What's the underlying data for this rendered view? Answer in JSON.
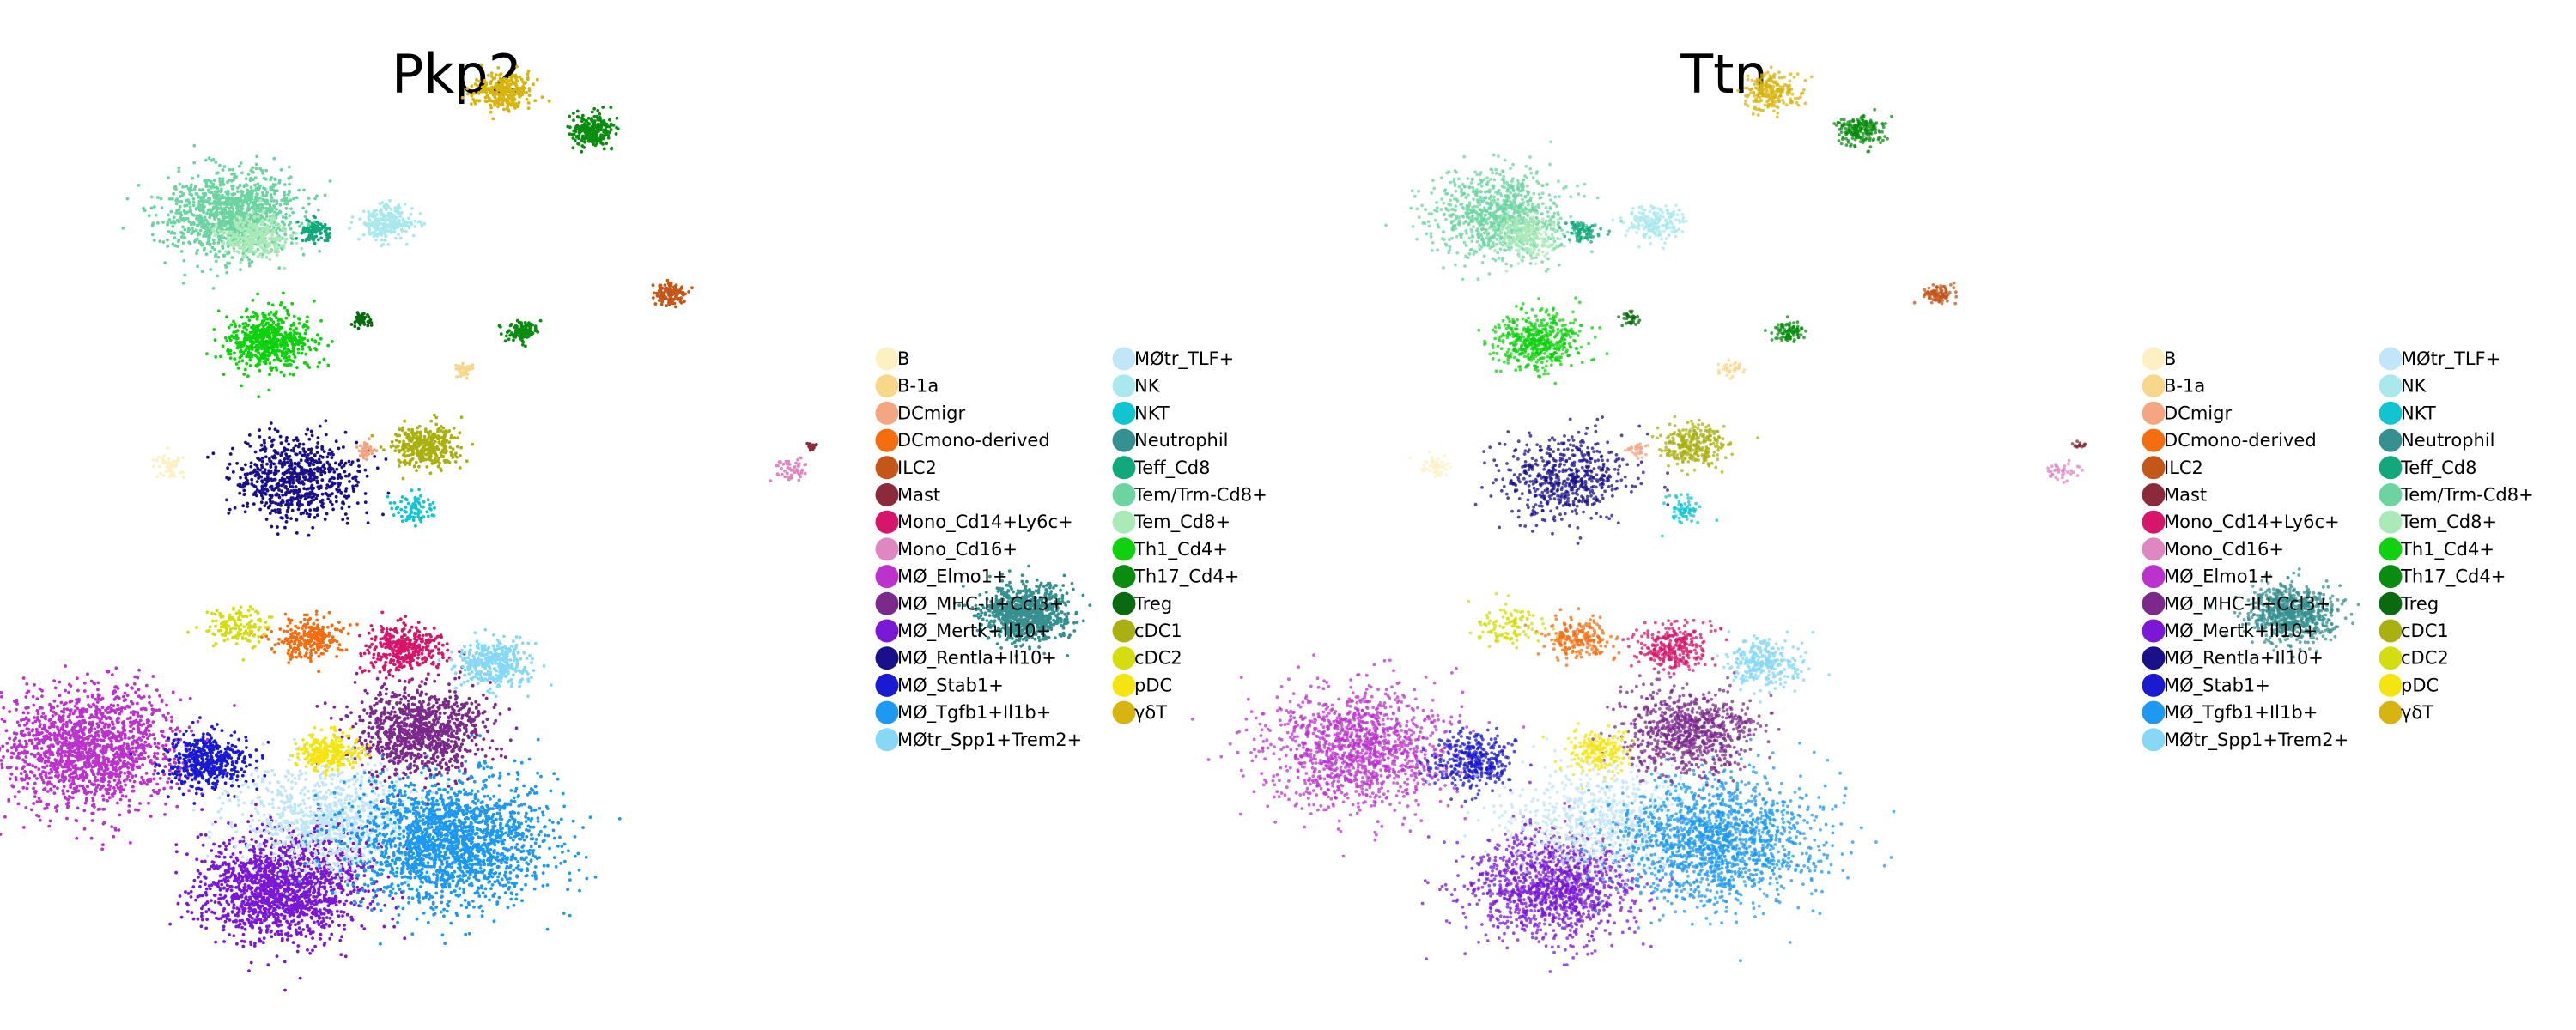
{
  "chart_data": {
    "type": "scatter",
    "embedding": "UMAP",
    "panels": [
      {
        "title": "Pkp2"
      },
      {
        "title": "Ttn"
      }
    ],
    "legend": {
      "placement": "right",
      "columns": 2,
      "entries": [
        {
          "label": "B",
          "color": "#fdf0c2"
        },
        {
          "label": "B-1a",
          "color": "#f8d78a"
        },
        {
          "label": "DCmigr",
          "color": "#f4a582"
        },
        {
          "label": "DCmono-derived",
          "color": "#f46d10"
        },
        {
          "label": "ILC2",
          "color": "#c4561a"
        },
        {
          "label": "Mast",
          "color": "#8a2a3a"
        },
        {
          "label": "Mono_Cd14+Ly6c+",
          "color": "#d6166a"
        },
        {
          "label": "Mono_Cd16+",
          "color": "#de87c1"
        },
        {
          "label": "MØ_Elmo1+",
          "color": "#bb33cc"
        },
        {
          "label": "MØ_MHC-II+Ccl3+",
          "color": "#7b2a8c"
        },
        {
          "label": "MØ_Mertk+Il10+",
          "color": "#7a18d6"
        },
        {
          "label": "MØ_Rentla+Il10+",
          "color": "#1a1089"
        },
        {
          "label": "MØ_Stab1+",
          "color": "#1a1ad0"
        },
        {
          "label": "MØ_Tgfb1+Il1b+",
          "color": "#1e98f0"
        },
        {
          "label": "MØtr_Spp1+Trem2+",
          "color": "#86d8f5"
        },
        {
          "label": "MØtr_TLF+",
          "color": "#c1e6f7"
        },
        {
          "label": "NK",
          "color": "#a9e8ec"
        },
        {
          "label": "NKT",
          "color": "#10c4d0"
        },
        {
          "label": "Neutrophil",
          "color": "#369090"
        },
        {
          "label": "Teff_Cd8",
          "color": "#12a87c"
        },
        {
          "label": "Tem/Trm-Cd8+",
          "color": "#6cd4a0"
        },
        {
          "label": "Tem_Cd8+",
          "color": "#a9eab8"
        },
        {
          "label": "Th1_Cd4+",
          "color": "#10d010"
        },
        {
          "label": "Th17_Cd4+",
          "color": "#0a8c10"
        },
        {
          "label": "Treg",
          "color": "#0a6a10"
        },
        {
          "label": "cDC1",
          "color": "#aab010"
        },
        {
          "label": "cDC2",
          "color": "#d4dd10"
        },
        {
          "label": "pDC",
          "color": "#f4e410"
        },
        {
          "label": "γδT",
          "color": "#d8b410"
        }
      ]
    },
    "clusters": [
      {
        "label": "MØ_Elmo1+",
        "center": [
          -6.2,
          -3.2
        ],
        "size": 1.7,
        "n": 1600
      },
      {
        "label": "MØ_Stab1+",
        "center": [
          -4.4,
          -3.5
        ],
        "size": 0.75,
        "n": 450
      },
      {
        "label": "MØ_Mertk+Il10+",
        "center": [
          -3.2,
          -6.5
        ],
        "size": 1.5,
        "n": 1600
      },
      {
        "label": "MØtr_TLF+",
        "center": [
          -2.5,
          -4.9
        ],
        "size": 1.6,
        "n": 900
      },
      {
        "label": "MØ_Tgfb1+Il1b+",
        "center": [
          -0.6,
          -5.4
        ],
        "size": 1.8,
        "n": 1900
      },
      {
        "label": "MØ_MHC-II+Ccl3+",
        "center": [
          -1.1,
          -2.8
        ],
        "size": 1.2,
        "n": 1000
      },
      {
        "label": "Mono_Cd14+Ly6c+",
        "center": [
          -1.3,
          -0.8
        ],
        "size": 0.7,
        "n": 350
      },
      {
        "label": "MØtr_Spp1+Trem2+",
        "center": [
          0.1,
          -1.2
        ],
        "size": 0.7,
        "n": 350
      },
      {
        "label": "pDC",
        "center": [
          -2.5,
          -3.3
        ],
        "size": 0.6,
        "n": 250
      },
      {
        "label": "DCmono-derived",
        "center": [
          -2.8,
          -0.6
        ],
        "size": 0.6,
        "n": 250
      },
      {
        "label": "cDC2",
        "center": [
          -3.9,
          -0.3
        ],
        "size": 0.6,
        "n": 150
      },
      {
        "label": "MØ_Rentla+Il10+",
        "center": [
          -3.0,
          3.2
        ],
        "size": 1.2,
        "n": 700
      },
      {
        "label": "NKT",
        "center": [
          -1.2,
          2.5
        ],
        "size": 0.4,
        "n": 80
      },
      {
        "label": "cDC1",
        "center": [
          -1.0,
          4.0
        ],
        "size": 0.6,
        "n": 350
      },
      {
        "label": "DCmigr",
        "center": [
          -1.9,
          3.9
        ],
        "size": 0.2,
        "n": 40
      },
      {
        "label": "B",
        "center": [
          -5.0,
          3.5
        ],
        "size": 0.3,
        "n": 60
      },
      {
        "label": "B-1a",
        "center": [
          -0.4,
          5.8
        ],
        "size": 0.2,
        "n": 40
      },
      {
        "label": "Th1_Cd4+",
        "center": [
          -3.4,
          6.5
        ],
        "size": 0.8,
        "n": 600
      },
      {
        "label": "Treg",
        "center": [
          -2.0,
          7.0
        ],
        "size": 0.2,
        "n": 40
      },
      {
        "label": "Th17_Cd4+",
        "center": [
          0.5,
          6.7
        ],
        "size": 0.3,
        "n": 120
      },
      {
        "label": "Tem/Trm-Cd8+",
        "center": [
          -4.0,
          9.5
        ],
        "size": 1.2,
        "n": 1100
      },
      {
        "label": "Tem_Cd8+",
        "center": [
          -3.6,
          9.0
        ],
        "size": 0.6,
        "n": 300
      },
      {
        "label": "Teff_Cd8",
        "center": [
          -2.7,
          9.1
        ],
        "size": 0.3,
        "n": 100
      },
      {
        "label": "NK",
        "center": [
          -1.6,
          9.3
        ],
        "size": 0.5,
        "n": 250
      },
      {
        "label": "γδT",
        "center": [
          0.2,
          12.4
        ],
        "size": 0.5,
        "n": 300
      },
      {
        "label": "Th17_Cd4+",
        "center": [
          1.6,
          11.5
        ],
        "size": 0.4,
        "n": 250
      },
      {
        "label": "ILC2",
        "center": [
          2.8,
          7.6
        ],
        "size": 0.3,
        "n": 120
      },
      {
        "label": "Mast",
        "center": [
          5.0,
          4.0
        ],
        "size": 0.1,
        "n": 20
      },
      {
        "label": "Mono_Cd16+",
        "center": [
          4.7,
          3.4
        ],
        "size": 0.3,
        "n": 50
      },
      {
        "label": "Neutrophil",
        "center": [
          8.3,
          0.0
        ],
        "size": 0.8,
        "n": 900
      }
    ],
    "axes": {
      "show": false,
      "grid": false
    }
  }
}
